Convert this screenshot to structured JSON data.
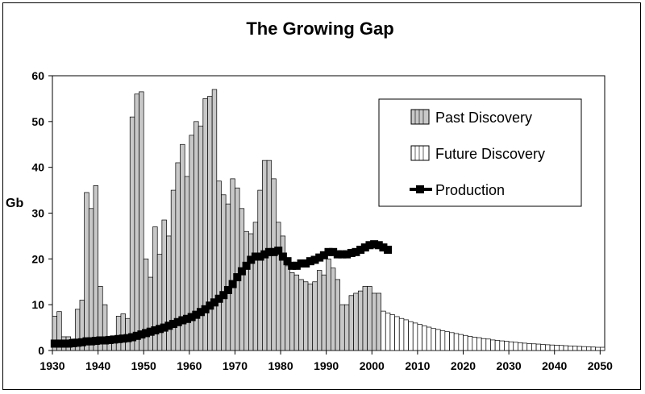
{
  "chart_data": {
    "type": "bar",
    "title": "The Growing Gap",
    "xlabel": "",
    "ylabel": "Gb",
    "xlim": [
      1930,
      2050
    ],
    "ylim": [
      0,
      60
    ],
    "x_ticks": [
      "1930",
      "1940",
      "1950",
      "1960",
      "1970",
      "1980",
      "1990",
      "2000",
      "2010",
      "2020",
      "2030",
      "2040",
      "2050"
    ],
    "y_ticks": [
      "0",
      "10",
      "20",
      "30",
      "40",
      "50",
      "60"
    ],
    "grid": false,
    "legend_position": "top-right",
    "colors": {
      "past": "#c8c8c8",
      "future": "#ffffff",
      "production": "#000000",
      "edge": "#000000"
    },
    "series": [
      {
        "name": "Past Discovery",
        "kind": "bar",
        "x": [
          1930,
          1931,
          1932,
          1933,
          1934,
          1935,
          1936,
          1937,
          1938,
          1939,
          1940,
          1941,
          1942,
          1943,
          1944,
          1945,
          1946,
          1947,
          1948,
          1949,
          1950,
          1951,
          1952,
          1953,
          1954,
          1955,
          1956,
          1957,
          1958,
          1959,
          1960,
          1961,
          1962,
          1963,
          1964,
          1965,
          1966,
          1967,
          1968,
          1969,
          1970,
          1971,
          1972,
          1973,
          1974,
          1975,
          1976,
          1977,
          1978,
          1979,
          1980,
          1981,
          1982,
          1983,
          1984,
          1985,
          1986,
          1987,
          1988,
          1989,
          1990,
          1991,
          1992,
          1993,
          1994,
          1995,
          1996,
          1997,
          1998,
          1999,
          2000,
          2001
        ],
        "values": [
          7.5,
          8.5,
          3,
          3,
          2.5,
          9,
          11,
          34.5,
          31,
          36,
          14,
          10,
          3,
          2.5,
          7.5,
          8,
          7,
          51,
          56,
          56.5,
          20,
          16,
          27,
          21,
          28.5,
          25,
          35,
          41,
          45,
          38,
          47,
          50,
          49,
          55,
          55.5,
          57,
          37,
          34,
          32,
          37.5,
          35.5,
          31,
          26,
          25.5,
          28,
          35,
          41.5,
          41.5,
          37.5,
          28,
          25,
          18.5,
          17,
          16.5,
          15.5,
          15,
          14.5,
          15,
          17.5,
          16.5,
          20,
          18,
          15.5,
          10,
          10,
          12,
          12.5,
          13,
          14,
          14,
          12.5,
          12.5
        ]
      },
      {
        "name": "Future Discovery",
        "kind": "bar",
        "x": [
          2002,
          2003,
          2004,
          2005,
          2006,
          2007,
          2008,
          2009,
          2010,
          2011,
          2012,
          2013,
          2014,
          2015,
          2016,
          2017,
          2018,
          2019,
          2020,
          2021,
          2022,
          2023,
          2024,
          2025,
          2026,
          2027,
          2028,
          2029,
          2030,
          2031,
          2032,
          2033,
          2034,
          2035,
          2036,
          2037,
          2038,
          2039,
          2040,
          2041,
          2042,
          2043,
          2044,
          2045,
          2046,
          2047,
          2048,
          2049,
          2050
        ],
        "values": [
          8.6,
          8.2,
          7.8,
          7.4,
          7.0,
          6.7,
          6.3,
          6.0,
          5.7,
          5.4,
          5.1,
          4.8,
          4.6,
          4.3,
          4.1,
          3.9,
          3.7,
          3.5,
          3.3,
          3.1,
          2.9,
          2.8,
          2.6,
          2.5,
          2.3,
          2.2,
          2.1,
          2.0,
          1.9,
          1.8,
          1.7,
          1.6,
          1.5,
          1.45,
          1.4,
          1.3,
          1.25,
          1.2,
          1.15,
          1.1,
          1.05,
          1.0,
          0.95,
          0.9,
          0.85,
          0.8,
          0.75,
          0.7,
          0.7
        ]
      },
      {
        "name": "Production",
        "kind": "line",
        "x": [
          1930,
          1931,
          1932,
          1933,
          1934,
          1935,
          1936,
          1937,
          1938,
          1939,
          1940,
          1941,
          1942,
          1943,
          1944,
          1945,
          1946,
          1947,
          1948,
          1949,
          1950,
          1951,
          1952,
          1953,
          1954,
          1955,
          1956,
          1957,
          1958,
          1959,
          1960,
          1961,
          1962,
          1963,
          1964,
          1965,
          1966,
          1967,
          1968,
          1969,
          1970,
          1971,
          1972,
          1973,
          1974,
          1975,
          1976,
          1977,
          1978,
          1979,
          1980,
          1981,
          1982,
          1983,
          1984,
          1985,
          1986,
          1987,
          1988,
          1989,
          1990,
          1991,
          1992,
          1993,
          1994,
          1995,
          1996,
          1997,
          1998,
          1999,
          2000,
          2001,
          2002,
          2003
        ],
        "values": [
          1.5,
          1.5,
          1.5,
          1.5,
          1.6,
          1.7,
          1.8,
          2.0,
          2.0,
          2.1,
          2.2,
          2.2,
          2.3,
          2.4,
          2.5,
          2.6,
          2.7,
          2.9,
          3.2,
          3.5,
          3.8,
          4.1,
          4.4,
          4.7,
          5.0,
          5.4,
          5.8,
          6.2,
          6.6,
          6.9,
          7.3,
          7.8,
          8.4,
          9.0,
          9.8,
          10.5,
          11.3,
          12.1,
          13.2,
          14.5,
          16.0,
          17.3,
          18.5,
          19.8,
          20.5,
          20.5,
          21.0,
          21.5,
          21.5,
          21.8,
          20.5,
          19.5,
          18.5,
          18.5,
          19.0,
          19.0,
          19.5,
          19.8,
          20.3,
          20.8,
          21.5,
          21.5,
          21.0,
          21.0,
          21.0,
          21.3,
          21.5,
          22.0,
          22.5,
          23.0,
          23.2,
          23.0,
          22.5,
          22.0
        ]
      }
    ]
  }
}
